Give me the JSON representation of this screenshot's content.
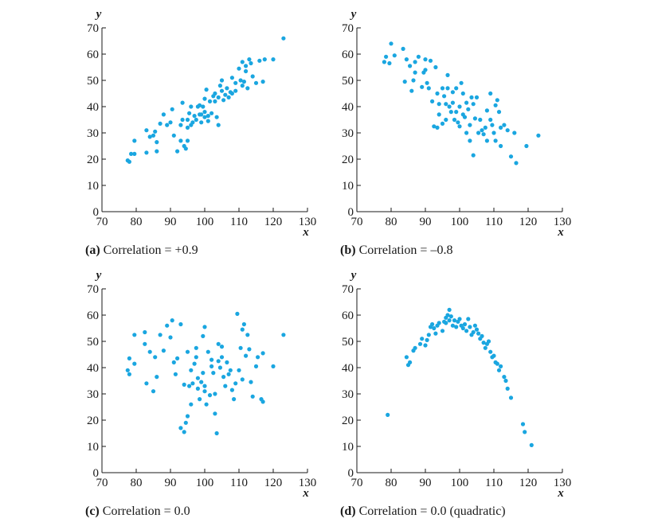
{
  "chart_data": [
    {
      "type": "scatter",
      "caption_letter": "(a)",
      "caption_text": "Correlation = +0.9",
      "xlabel": "x",
      "ylabel": "y",
      "xlim": [
        70,
        130
      ],
      "ylim": [
        0,
        70
      ],
      "xticks": [
        70,
        80,
        90,
        100,
        110,
        120,
        130
      ],
      "yticks": [
        0,
        10,
        20,
        30,
        40,
        50,
        60,
        70
      ],
      "color": "#1aa6e0",
      "points": [
        [
          77.5,
          19.5
        ],
        [
          78,
          19
        ],
        [
          78.5,
          22
        ],
        [
          79.5,
          22
        ],
        [
          79.5,
          27
        ],
        [
          83,
          22.5
        ],
        [
          83,
          31
        ],
        [
          84,
          28.5
        ],
        [
          85,
          29
        ],
        [
          85.5,
          30.5
        ],
        [
          86,
          23
        ],
        [
          86,
          26.5
        ],
        [
          87,
          33.5
        ],
        [
          88,
          37
        ],
        [
          89,
          33
        ],
        [
          90,
          34
        ],
        [
          90.5,
          39
        ],
        [
          91,
          29
        ],
        [
          92,
          23
        ],
        [
          93,
          27
        ],
        [
          93,
          33
        ],
        [
          93.5,
          35
        ],
        [
          93.5,
          41.5
        ],
        [
          94,
          25
        ],
        [
          94.5,
          24
        ],
        [
          95,
          27
        ],
        [
          95,
          32
        ],
        [
          95,
          35
        ],
        [
          95.5,
          37.5
        ],
        [
          96,
          33
        ],
        [
          96,
          40
        ],
        [
          96.5,
          34
        ],
        [
          97,
          36.5
        ],
        [
          97.5,
          35
        ],
        [
          98,
          40
        ],
        [
          98.5,
          37
        ],
        [
          98.5,
          40.5
        ],
        [
          99,
          34
        ],
        [
          99,
          37
        ],
        [
          99.5,
          40
        ],
        [
          100,
          36
        ],
        [
          100,
          38
        ],
        [
          100,
          43
        ],
        [
          100.5,
          46.5
        ],
        [
          101,
          34.5
        ],
        [
          101,
          36.5
        ],
        [
          101.5,
          42
        ],
        [
          102,
          37.5
        ],
        [
          102.5,
          44
        ],
        [
          103,
          42
        ],
        [
          103,
          45
        ],
        [
          103.5,
          36
        ],
        [
          104,
          33
        ],
        [
          104,
          43.5
        ],
        [
          104.5,
          48
        ],
        [
          105,
          46
        ],
        [
          105,
          50
        ],
        [
          105.5,
          42.5
        ],
        [
          106,
          44.5
        ],
        [
          106.5,
          47
        ],
        [
          107,
          43.5
        ],
        [
          107.5,
          45.5
        ],
        [
          108,
          45
        ],
        [
          108,
          51
        ],
        [
          109,
          46
        ],
        [
          109,
          49
        ],
        [
          110,
          54.5
        ],
        [
          110.5,
          50
        ],
        [
          111,
          57
        ],
        [
          111,
          48
        ],
        [
          111.5,
          49.5
        ],
        [
          112,
          53.5
        ],
        [
          112,
          55.5
        ],
        [
          112.5,
          47
        ],
        [
          113,
          58
        ],
        [
          113.5,
          56.5
        ],
        [
          114,
          51.5
        ],
        [
          115,
          49
        ],
        [
          116,
          57.5
        ],
        [
          117,
          49.5
        ],
        [
          117.5,
          58
        ],
        [
          120,
          58
        ],
        [
          123,
          66
        ]
      ]
    },
    {
      "type": "scatter",
      "caption_letter": "(b)",
      "caption_text": "Correlation = –0.8",
      "xlabel": "x",
      "ylabel": "y",
      "xlim": [
        70,
        130
      ],
      "ylim": [
        0,
        70
      ],
      "xticks": [
        70,
        80,
        90,
        100,
        110,
        120,
        130
      ],
      "yticks": [
        0,
        10,
        20,
        30,
        40,
        50,
        60,
        70
      ],
      "color": "#1aa6e0",
      "points": [
        [
          78,
          57
        ],
        [
          78.5,
          59
        ],
        [
          79.5,
          56.5
        ],
        [
          80,
          64
        ],
        [
          81,
          59.5
        ],
        [
          83.5,
          62
        ],
        [
          84.5,
          58
        ],
        [
          84,
          49.5
        ],
        [
          85.5,
          55.5
        ],
        [
          86,
          46
        ],
        [
          86.5,
          50
        ],
        [
          87,
          53
        ],
        [
          87,
          57
        ],
        [
          88,
          59
        ],
        [
          89,
          47.5
        ],
        [
          89.5,
          53
        ],
        [
          90,
          58
        ],
        [
          90,
          54
        ],
        [
          90.5,
          49
        ],
        [
          91,
          47
        ],
        [
          91.5,
          57.5
        ],
        [
          92,
          42
        ],
        [
          92.5,
          32.5
        ],
        [
          93,
          55
        ],
        [
          93.5,
          45
        ],
        [
          93.5,
          32
        ],
        [
          94,
          37
        ],
        [
          94,
          41
        ],
        [
          95,
          33.5
        ],
        [
          95,
          47
        ],
        [
          95.5,
          44
        ],
        [
          96,
          35
        ],
        [
          96,
          41
        ],
        [
          96.5,
          52
        ],
        [
          96.5,
          47
        ],
        [
          97,
          40
        ],
        [
          97.5,
          38
        ],
        [
          98,
          45.5
        ],
        [
          98,
          41.5
        ],
        [
          98.5,
          35
        ],
        [
          99,
          38
        ],
        [
          99,
          47
        ],
        [
          99.5,
          34
        ],
        [
          100,
          40
        ],
        [
          100,
          32.5
        ],
        [
          100.5,
          49
        ],
        [
          101,
          45
        ],
        [
          101,
          37
        ],
        [
          101.5,
          36
        ],
        [
          102,
          30
        ],
        [
          102,
          41.5
        ],
        [
          102.5,
          39
        ],
        [
          103,
          33
        ],
        [
          103,
          27
        ],
        [
          103.5,
          43.5
        ],
        [
          104,
          41
        ],
        [
          104,
          21.5
        ],
        [
          104.5,
          35.5
        ],
        [
          105,
          43.5
        ],
        [
          105.5,
          30
        ],
        [
          106,
          35
        ],
        [
          106.5,
          31
        ],
        [
          107,
          29.5
        ],
        [
          107.5,
          32
        ],
        [
          108,
          27
        ],
        [
          108,
          38.5
        ],
        [
          109,
          45
        ],
        [
          109,
          35
        ],
        [
          109.5,
          33
        ],
        [
          110,
          30
        ],
        [
          110.5,
          40.5
        ],
        [
          110.5,
          27
        ],
        [
          111,
          42.5
        ],
        [
          111.5,
          38
        ],
        [
          112,
          32
        ],
        [
          112,
          25
        ],
        [
          113,
          33
        ],
        [
          114,
          31
        ],
        [
          115,
          21
        ],
        [
          116,
          30
        ],
        [
          116.5,
          18.5
        ],
        [
          119.5,
          25
        ],
        [
          123,
          29
        ]
      ]
    },
    {
      "type": "scatter",
      "caption_letter": "(c)",
      "caption_text": "Correlation = 0.0",
      "xlabel": "x",
      "ylabel": "y",
      "xlim": [
        70,
        130
      ],
      "ylim": [
        0,
        70
      ],
      "xticks": [
        70,
        80,
        90,
        100,
        110,
        120,
        130
      ],
      "yticks": [
        0,
        10,
        20,
        30,
        40,
        50,
        60,
        70
      ],
      "color": "#1aa6e0",
      "points": [
        [
          77.5,
          39
        ],
        [
          78,
          43.5
        ],
        [
          78,
          37.5
        ],
        [
          79.5,
          52.5
        ],
        [
          79.5,
          41.5
        ],
        [
          82.5,
          53.5
        ],
        [
          82.5,
          49
        ],
        [
          83,
          34
        ],
        [
          84,
          46
        ],
        [
          85,
          31
        ],
        [
          85.5,
          44
        ],
        [
          86,
          36.5
        ],
        [
          87,
          52.5
        ],
        [
          88,
          46.5
        ],
        [
          89,
          56
        ],
        [
          90,
          51.5
        ],
        [
          90.5,
          58
        ],
        [
          91,
          42
        ],
        [
          91.5,
          37.5
        ],
        [
          92,
          43.5
        ],
        [
          93,
          56.5
        ],
        [
          93,
          17
        ],
        [
          94,
          33.5
        ],
        [
          94,
          15.5
        ],
        [
          94.5,
          19
        ],
        [
          95,
          21.5
        ],
        [
          95,
          46
        ],
        [
          95.5,
          33
        ],
        [
          96,
          39
        ],
        [
          96,
          26
        ],
        [
          96.5,
          34
        ],
        [
          97,
          41.5
        ],
        [
          97.5,
          44
        ],
        [
          97.5,
          47.5
        ],
        [
          98,
          32
        ],
        [
          98,
          36
        ],
        [
          98.5,
          28
        ],
        [
          99,
          34.5
        ],
        [
          99.5,
          52
        ],
        [
          99.5,
          38
        ],
        [
          100,
          55.5
        ],
        [
          100,
          33
        ],
        [
          100,
          31
        ],
        [
          100.5,
          26
        ],
        [
          101,
          46
        ],
        [
          101.5,
          29.5
        ],
        [
          102,
          43
        ],
        [
          102,
          40.5
        ],
        [
          102.5,
          38
        ],
        [
          103,
          30
        ],
        [
          103,
          22.5
        ],
        [
          103.5,
          15
        ],
        [
          104,
          49
        ],
        [
          104,
          42.5
        ],
        [
          104.5,
          40
        ],
        [
          105,
          44
        ],
        [
          105,
          48
        ],
        [
          105.5,
          36.5
        ],
        [
          106,
          33
        ],
        [
          106.5,
          42
        ],
        [
          107,
          37.5
        ],
        [
          107.5,
          39
        ],
        [
          108,
          31.5
        ],
        [
          108.5,
          28
        ],
        [
          109,
          34
        ],
        [
          109.5,
          60.5
        ],
        [
          110,
          39
        ],
        [
          110.5,
          47.5
        ],
        [
          111,
          54.5
        ],
        [
          111,
          35.5
        ],
        [
          111.5,
          56.5
        ],
        [
          112,
          44.5
        ],
        [
          112.5,
          52.5
        ],
        [
          113,
          47
        ],
        [
          113.5,
          34.5
        ],
        [
          114,
          29
        ],
        [
          115,
          40.5
        ],
        [
          115.5,
          44
        ],
        [
          116.5,
          28
        ],
        [
          117,
          45.5
        ],
        [
          117,
          27
        ],
        [
          120,
          40.5
        ],
        [
          123,
          52.5
        ]
      ]
    },
    {
      "type": "scatter",
      "caption_letter": "(d)",
      "caption_text": "Correlation = 0.0 (quadratic)",
      "xlabel": "x",
      "ylabel": "y",
      "xlim": [
        70,
        130
      ],
      "ylim": [
        0,
        70
      ],
      "xticks": [
        70,
        80,
        90,
        100,
        110,
        120,
        130
      ],
      "yticks": [
        0,
        10,
        20,
        30,
        40,
        50,
        60,
        70
      ],
      "color": "#1aa6e0",
      "points": [
        [
          79,
          22
        ],
        [
          84.5,
          44
        ],
        [
          85,
          41
        ],
        [
          85.5,
          42
        ],
        [
          86.5,
          46.5
        ],
        [
          87,
          47.5
        ],
        [
          88.5,
          49
        ],
        [
          89,
          51
        ],
        [
          90,
          48.5
        ],
        [
          90.5,
          50.5
        ],
        [
          91,
          52.5
        ],
        [
          91.5,
          55.5
        ],
        [
          92,
          56.5
        ],
        [
          92.5,
          55
        ],
        [
          93,
          53
        ],
        [
          93.5,
          56
        ],
        [
          94,
          57
        ],
        [
          95,
          54
        ],
        [
          95.5,
          57.5
        ],
        [
          96,
          57
        ],
        [
          96,
          59
        ],
        [
          96.5,
          60
        ],
        [
          97,
          62
        ],
        [
          97,
          58
        ],
        [
          97.5,
          59.5
        ],
        [
          98,
          56
        ],
        [
          98.5,
          58
        ],
        [
          99,
          55.5
        ],
        [
          99.5,
          57.5
        ],
        [
          100,
          58.5
        ],
        [
          100.5,
          56
        ],
        [
          101,
          55
        ],
        [
          101.5,
          56.5
        ],
        [
          102,
          54
        ],
        [
          102.5,
          58.5
        ],
        [
          103,
          55.5
        ],
        [
          103.5,
          52.5
        ],
        [
          104,
          53.5
        ],
        [
          104.5,
          56
        ],
        [
          105,
          54.5
        ],
        [
          105.5,
          53
        ],
        [
          106,
          51
        ],
        [
          106.5,
          52
        ],
        [
          107,
          49.5
        ],
        [
          107.5,
          47.5
        ],
        [
          108,
          49
        ],
        [
          108.5,
          50
        ],
        [
          109,
          46
        ],
        [
          109.5,
          44
        ],
        [
          110,
          44.5
        ],
        [
          110.5,
          42
        ],
        [
          111,
          41.5
        ],
        [
          111.5,
          39
        ],
        [
          112,
          40.5
        ],
        [
          113,
          36.5
        ],
        [
          113.5,
          35
        ],
        [
          114,
          32
        ],
        [
          115,
          28.5
        ],
        [
          118.5,
          18.5
        ],
        [
          119,
          15.5
        ],
        [
          121,
          10.5
        ]
      ]
    }
  ]
}
